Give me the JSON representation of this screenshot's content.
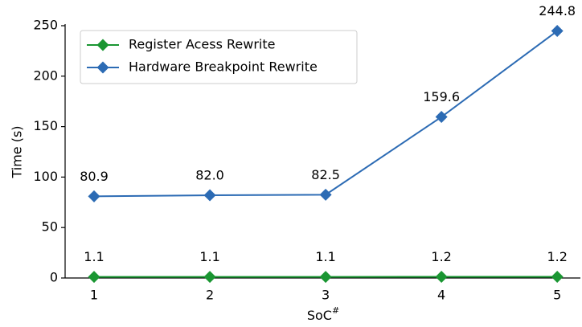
{
  "chart_data": {
    "type": "line",
    "xlabel": {
      "text": "SoC",
      "superscript": "#"
    },
    "ylabel": "Time (s)",
    "x": [
      1,
      2,
      3,
      4,
      5
    ],
    "series": [
      {
        "name": "Register Acess Rewrite",
        "color": "#1a9632",
        "values": [
          1.1,
          1.1,
          1.1,
          1.2,
          1.2
        ],
        "value_labels": [
          "1.1",
          "1.1",
          "1.1",
          "1.2",
          "1.2"
        ]
      },
      {
        "name": "Hardware Breakpoint Rewrite",
        "color": "#2c6bb4",
        "values": [
          80.9,
          82.0,
          82.5,
          159.6,
          244.8
        ],
        "value_labels": [
          "80.9",
          "82.0",
          "82.5",
          "159.6",
          "244.8"
        ]
      }
    ],
    "xlim": [
      0.75,
      5.2
    ],
    "xticks": [
      1,
      2,
      3,
      4,
      5
    ],
    "ylim": [
      0,
      250
    ],
    "yticks": [
      0,
      50,
      100,
      150,
      200,
      250
    ],
    "legend": "upper left",
    "grid": false
  }
}
